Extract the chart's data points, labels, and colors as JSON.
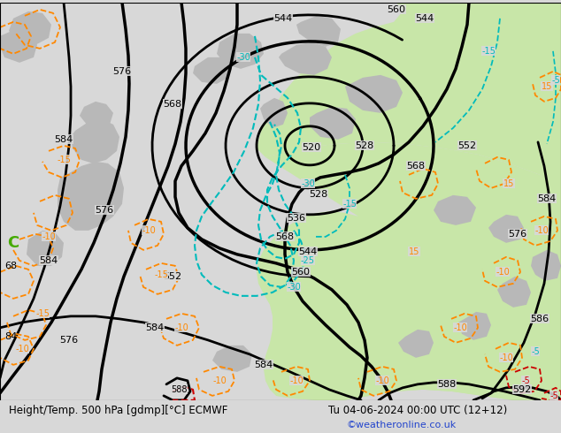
{
  "title_left": "Height/Temp. 500 hPa [gdmp][°C] ECMWF",
  "title_right": "Tu 04-06-2024 00:00 UTC (12+12)",
  "watermark": "©weatheronline.co.uk",
  "bg_color": "#d8d8d8",
  "land_color_green": "#c8e6a8",
  "land_color_gray": "#b8b8b8",
  "contour_color_black": "#000000",
  "contour_color_cyan": "#00bbbb",
  "contour_color_orange": "#ff8800",
  "contour_color_red": "#cc0000",
  "contour_color_green": "#44aa00",
  "figwidth": 6.34,
  "figheight": 4.9,
  "dpi": 100
}
